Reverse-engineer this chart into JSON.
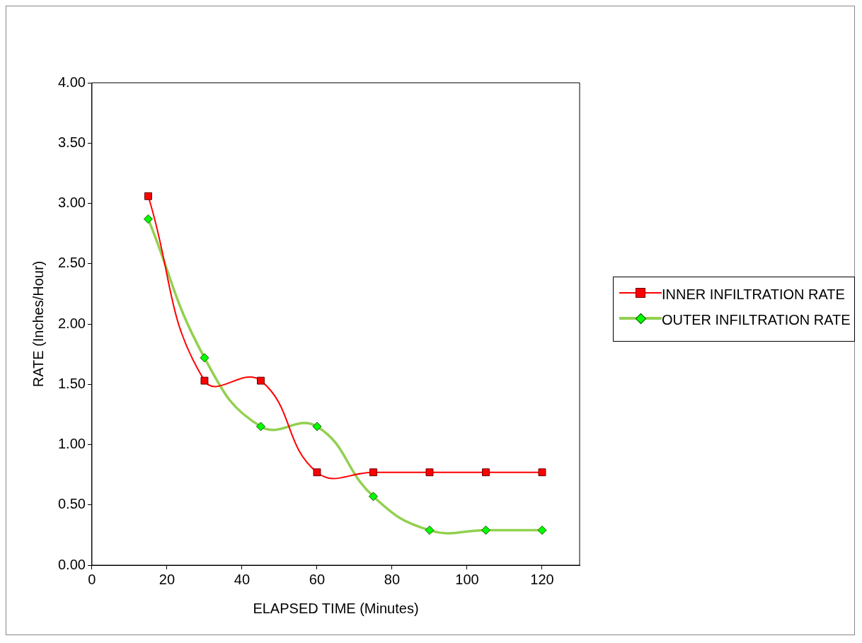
{
  "chart_data": {
    "type": "line",
    "xlabel": "ELAPSED TIME (Minutes)",
    "ylabel": "RATE (Inches/Hour)",
    "x": [
      15,
      30,
      45,
      60,
      75,
      90,
      105,
      120
    ],
    "series": [
      {
        "name": "INNER INFILTRATION RATE",
        "color": "#ff0000",
        "marker": "square",
        "values": [
          3.06,
          1.53,
          1.53,
          0.77,
          0.77,
          0.77,
          0.77,
          0.77
        ]
      },
      {
        "name": "OUTER INFILTRATION RATE",
        "color": "#92d050",
        "marker": "diamond",
        "values": [
          2.87,
          1.72,
          1.15,
          1.15,
          0.57,
          0.29,
          0.29,
          0.29
        ]
      }
    ],
    "xlim": [
      0,
      130
    ],
    "xticks": [
      0,
      20,
      40,
      60,
      80,
      100,
      120
    ],
    "ylim": [
      0,
      4
    ],
    "yticks": [
      {
        "value": 0,
        "label": "0.00"
      },
      {
        "value": 0.5,
        "label": "0.50"
      },
      {
        "value": 1,
        "label": "1.00"
      },
      {
        "value": 1.5,
        "label": "1.50"
      },
      {
        "value": 2,
        "label": "2.00"
      },
      {
        "value": 2.5,
        "label": "2.50"
      },
      {
        "value": 3,
        "label": "3.00"
      },
      {
        "value": 3.5,
        "label": "3.50"
      },
      {
        "value": 4,
        "label": "4.00"
      }
    ],
    "grid": false,
    "legend": "right"
  }
}
